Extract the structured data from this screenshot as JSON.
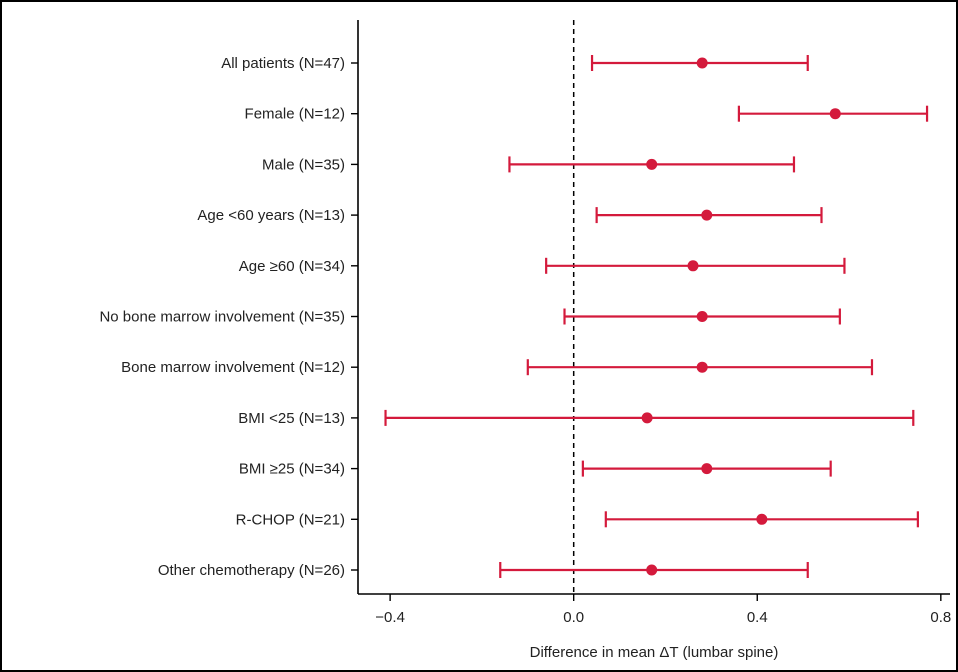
{
  "chart_data": {
    "type": "forest",
    "xlabel": "Difference in mean ΔT (lumbar spine)",
    "xlim": [
      -0.47,
      0.82
    ],
    "xticks": [
      "-0.4",
      "0.0",
      "0.4",
      "0.8"
    ],
    "xtick_values": [
      -0.4,
      0.0,
      0.4,
      0.8
    ],
    "reference_line": 0.0,
    "color": "#d41a3c",
    "categories": [
      "All patients (N=47)",
      "Female (N=12)",
      "Male (N=35)",
      "Age <60 years (N=13)",
      "Age ≥60 (N=34)",
      "No bone marrow involvement (N=35)",
      "Bone marrow involvement (N=12)",
      "BMI <25 (N=13)",
      "BMI ≥25 (N=34)",
      "R-CHOP (N=21)",
      "Other chemotherapy (N=26)"
    ],
    "estimates": [
      0.28,
      0.57,
      0.17,
      0.29,
      0.26,
      0.28,
      0.28,
      0.16,
      0.29,
      0.41,
      0.17
    ],
    "lower": [
      0.04,
      0.36,
      -0.14,
      0.05,
      -0.06,
      -0.02,
      -0.1,
      -0.41,
      0.02,
      0.07,
      -0.16
    ],
    "upper": [
      0.51,
      0.77,
      0.48,
      0.54,
      0.59,
      0.58,
      0.65,
      0.74,
      0.56,
      0.75,
      0.51
    ]
  }
}
